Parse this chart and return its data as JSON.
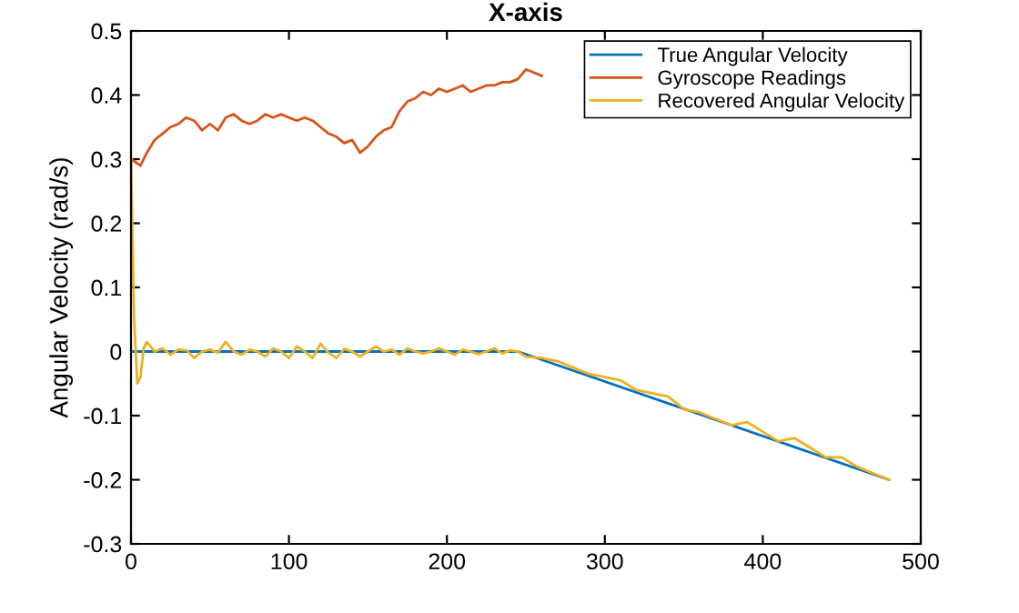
{
  "chart_data": {
    "type": "line",
    "title": "X-axis",
    "ylabel": "Angular Velocity (rad/s)",
    "xlim": [
      0,
      500
    ],
    "ylim": [
      -0.3,
      0.5
    ],
    "xticks": [
      0,
      100,
      200,
      300,
      400,
      500
    ],
    "yticks": [
      -0.3,
      -0.2,
      -0.1,
      0,
      0.1,
      0.2,
      0.3,
      0.4,
      0.5
    ],
    "grid": false,
    "legend": "top right",
    "series": [
      {
        "name": "True Angular Velocity",
        "color": "#0072bd",
        "x": [
          0,
          245,
          480
        ],
        "values": [
          0,
          0,
          -0.2
        ]
      },
      {
        "name": "Gyroscope Readings",
        "color": "#d95319",
        "x": [
          0,
          3,
          6,
          10,
          15,
          20,
          25,
          30,
          35,
          40,
          45,
          50,
          55,
          60,
          65,
          70,
          75,
          80,
          85,
          90,
          95,
          100,
          105,
          110,
          115,
          120,
          125,
          130,
          135,
          140,
          145,
          150,
          155,
          160,
          165,
          170,
          175,
          180,
          185,
          190,
          195,
          200,
          205,
          210,
          215,
          220,
          225,
          230,
          235,
          240,
          245,
          250,
          255,
          260
        ],
        "values": [
          0.3,
          0.295,
          0.29,
          0.31,
          0.33,
          0.34,
          0.35,
          0.355,
          0.365,
          0.36,
          0.345,
          0.355,
          0.345,
          0.365,
          0.37,
          0.36,
          0.355,
          0.36,
          0.37,
          0.365,
          0.37,
          0.365,
          0.36,
          0.365,
          0.36,
          0.35,
          0.34,
          0.335,
          0.325,
          0.33,
          0.31,
          0.32,
          0.335,
          0.345,
          0.35,
          0.375,
          0.39,
          0.395,
          0.405,
          0.4,
          0.41,
          0.405,
          0.41,
          0.415,
          0.405,
          0.41,
          0.415,
          0.415,
          0.42,
          0.42,
          0.425,
          0.44,
          0.435,
          0.43
        ]
      },
      {
        "name": "Recovered Angular Velocity",
        "color": "#edb120",
        "x": [
          0,
          2,
          4,
          6,
          8,
          10,
          15,
          20,
          25,
          30,
          35,
          40,
          45,
          50,
          55,
          60,
          65,
          70,
          75,
          80,
          85,
          90,
          95,
          100,
          105,
          110,
          115,
          120,
          125,
          130,
          135,
          140,
          145,
          150,
          155,
          160,
          165,
          170,
          175,
          180,
          185,
          190,
          195,
          200,
          205,
          210,
          215,
          220,
          225,
          230,
          235,
          240,
          245,
          250,
          260,
          270,
          280,
          290,
          300,
          310,
          320,
          330,
          340,
          350,
          360,
          370,
          380,
          390,
          400,
          410,
          420,
          430,
          440,
          450,
          460,
          470,
          480
        ],
        "values": [
          0.3,
          0.05,
          -0.05,
          -0.04,
          0.005,
          0.015,
          0.0,
          0.005,
          -0.005,
          0.003,
          0.002,
          -0.01,
          0.0,
          0.003,
          -0.002,
          0.015,
          0.0,
          -0.005,
          0.003,
          0.0,
          -0.008,
          0.005,
          0.0,
          -0.01,
          0.008,
          0.0,
          -0.01,
          0.012,
          -0.002,
          -0.01,
          0.004,
          0.0,
          -0.008,
          0.0,
          0.008,
          0.0,
          0.003,
          -0.005,
          0.005,
          0.0,
          -0.003,
          0.0,
          0.005,
          0.0,
          -0.005,
          0.003,
          0.0,
          -0.004,
          0.0,
          0.005,
          -0.003,
          0.002,
          0.0,
          -0.008,
          -0.01,
          -0.015,
          -0.025,
          -0.035,
          -0.04,
          -0.045,
          -0.06,
          -0.065,
          -0.07,
          -0.09,
          -0.095,
          -0.105,
          -0.115,
          -0.11,
          -0.125,
          -0.14,
          -0.135,
          -0.15,
          -0.165,
          -0.165,
          -0.18,
          -0.19,
          -0.2
        ]
      }
    ]
  }
}
